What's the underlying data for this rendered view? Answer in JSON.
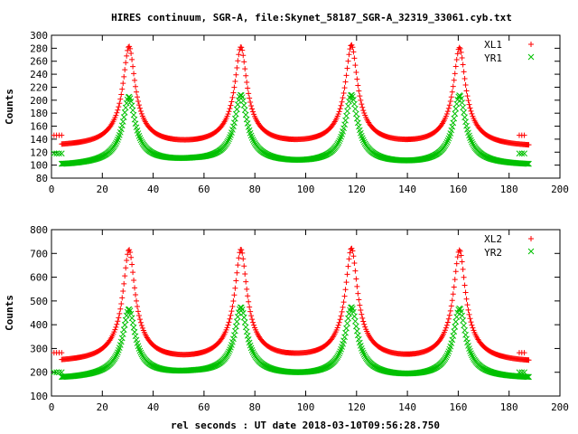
{
  "chart_data": [
    {
      "type": "scatter",
      "title": "HIRES continuum, SGR-A, file:Skynet_58187_SGR-A_32319_33061.cyb.txt",
      "xlabel": "",
      "ylabel": "Counts",
      "xlim": [
        0,
        200
      ],
      "ylim": [
        80,
        300
      ],
      "xticks": [
        0,
        20,
        40,
        60,
        80,
        100,
        120,
        140,
        160,
        180,
        200
      ],
      "yticks": [
        80,
        100,
        120,
        140,
        160,
        180,
        200,
        220,
        240,
        260,
        280,
        300
      ],
      "grid": false,
      "legend": "top-right",
      "series": [
        {
          "name": "XL1",
          "color": "#ff0000",
          "marker": "plus",
          "baseline": 128,
          "offsource": 146,
          "peaks": [
            [
              30.5,
              281
            ],
            [
              74.5,
              279
            ],
            [
              118,
              282
            ],
            [
              160.5,
              279
            ]
          ],
          "dips": [
            [
              8,
              128
            ],
            [
              52,
              128
            ],
            [
              96,
              128
            ],
            [
              138,
              128
            ],
            [
              182,
              127
            ]
          ]
        },
        {
          "name": "YR1",
          "color": "#00c000",
          "marker": "cross",
          "baseline": 100,
          "offsource": 118,
          "peaks": [
            [
              30.5,
              204
            ],
            [
              74.5,
              206
            ],
            [
              118,
              206
            ],
            [
              160.5,
              206
            ]
          ],
          "dips": [
            [
              8,
              99
            ],
            [
              56,
              104
            ],
            [
              96,
              100
            ],
            [
              140,
              99
            ],
            [
              182,
              99
            ]
          ]
        }
      ]
    },
    {
      "type": "scatter",
      "title": "",
      "xlabel": "rel seconds : UT date 2018-03-10T09:56:28.750",
      "ylabel": "Counts",
      "xlim": [
        0,
        200
      ],
      "ylim": [
        100,
        800
      ],
      "xticks": [
        0,
        20,
        40,
        60,
        80,
        100,
        120,
        140,
        160,
        180,
        200
      ],
      "yticks": [
        100,
        200,
        300,
        400,
        500,
        600,
        700,
        800
      ],
      "grid": false,
      "legend": "top-right",
      "series": [
        {
          "name": "XL2",
          "color": "#ff0000",
          "marker": "plus",
          "baseline": 240,
          "offsource": 282,
          "peaks": [
            [
              30.5,
              710
            ],
            [
              74.5,
              708
            ],
            [
              118,
              712
            ],
            [
              160.5,
              708
            ]
          ],
          "dips": [
            [
              8,
              240
            ],
            [
              52,
              240
            ],
            [
              96,
              245
            ],
            [
              138,
              240
            ],
            [
              184,
              238
            ]
          ]
        },
        {
          "name": "YR2",
          "color": "#00c000",
          "marker": "cross",
          "baseline": 175,
          "offsource": 200,
          "peaks": [
            [
              30.5,
              462
            ],
            [
              74.5,
              468
            ],
            [
              118,
              468
            ],
            [
              160.5,
              465
            ]
          ],
          "dips": [
            [
              8,
              172
            ],
            [
              56,
              188
            ],
            [
              96,
              178
            ],
            [
              140,
              172
            ],
            [
              184,
              172
            ]
          ]
        }
      ]
    }
  ]
}
